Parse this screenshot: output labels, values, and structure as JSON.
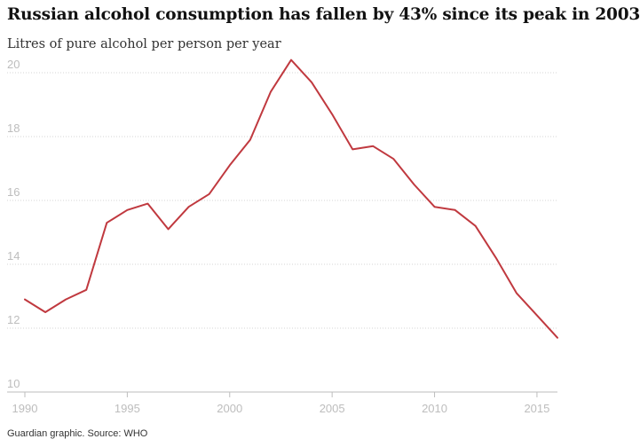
{
  "header": {
    "title": "Russian alcohol consumption has fallen by 43% since its peak in 2003",
    "subtitle": "Litres of pure alcohol per person per year"
  },
  "footer": {
    "source": "Guardian graphic. Source: WHO"
  },
  "colors": {
    "line": "#c0393f",
    "grid": "#d4d4d4",
    "axis": "#bdbdbd",
    "tick_text": "#bdbdbd"
  },
  "chart_data": {
    "type": "line",
    "title": "Russian alcohol consumption has fallen by 43% since its peak in 2003",
    "subtitle": "Litres of pure alcohol per person per year",
    "xlabel": "",
    "ylabel": "",
    "xlim": [
      1990,
      2016
    ],
    "ylim": [
      10,
      20.5
    ],
    "grid": true,
    "x_ticks": [
      1990,
      1995,
      2000,
      2005,
      2010,
      2015
    ],
    "y_ticks": [
      10,
      12,
      14,
      16,
      18,
      20
    ],
    "x": [
      1990,
      1991,
      1992,
      1993,
      1994,
      1995,
      1996,
      1997,
      1998,
      1999,
      2000,
      2001,
      2002,
      2003,
      2004,
      2005,
      2006,
      2007,
      2008,
      2009,
      2010,
      2011,
      2012,
      2013,
      2014,
      2015,
      2016
    ],
    "series": [
      {
        "values": [
          12.9,
          12.5,
          12.9,
          13.2,
          15.3,
          15.7,
          15.9,
          15.1,
          15.8,
          16.2,
          17.1,
          17.9,
          19.4,
          20.4,
          19.7,
          18.7,
          17.6,
          17.7,
          17.3,
          16.5,
          15.8,
          15.7,
          15.2,
          14.2,
          13.1,
          12.4,
          11.7
        ]
      }
    ]
  }
}
